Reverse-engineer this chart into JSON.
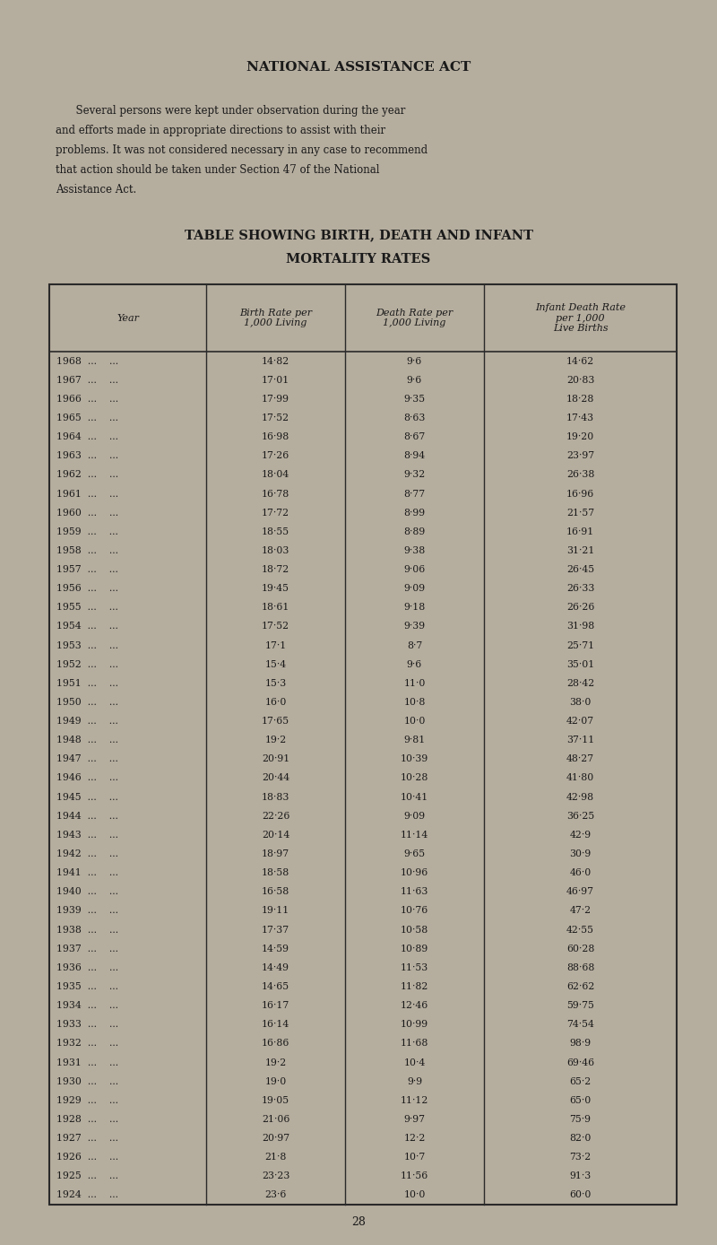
{
  "bg_color": "#b5ad9e",
  "title": "NATIONAL ASSISTANCE ACT",
  "intro_text": "Several persons were kept under observation during the year and efforts made in appropriate directions to assist with their problems. It was not considered necessary in any case to recommend that action should be taken under Section 47 of the National Assistance Act.",
  "table_title_line1": "TABLE SHOWING BIRTH, DEATH AND INFANT",
  "table_title_line2": "MORTALITY RATES",
  "col_headers": [
    "Year",
    "Birth Rate per\n1,000 Living",
    "Death Rate per\n1,000 Living",
    "Infant Death Rate\nper 1,000\nLive Births"
  ],
  "rows": [
    [
      "1968",
      "14·82",
      "9·6",
      "14·62"
    ],
    [
      "1967",
      "17·01",
      "9·6",
      "20·83"
    ],
    [
      "1966",
      "17·99",
      "9·35",
      "18·28"
    ],
    [
      "1965",
      "17·52",
      "8·63",
      "17·43"
    ],
    [
      "1964",
      "16·98",
      "8·67",
      "19·20"
    ],
    [
      "1963",
      "17·26",
      "8·94",
      "23·97"
    ],
    [
      "1962",
      "18·04",
      "9·32",
      "26·38"
    ],
    [
      "1961",
      "16·78",
      "8·77",
      "16·96"
    ],
    [
      "1960",
      "17·72",
      "8·99",
      "21·57"
    ],
    [
      "1959",
      "18·55",
      "8·89",
      "16·91"
    ],
    [
      "1958",
      "18·03",
      "9·38",
      "31·21"
    ],
    [
      "1957",
      "18·72",
      "9·06",
      "26·45"
    ],
    [
      "1956",
      "19·45",
      "9·09",
      "26·33"
    ],
    [
      "1955",
      "18·61",
      "9·18",
      "26·26"
    ],
    [
      "1954",
      "17·52",
      "9·39",
      "31·98"
    ],
    [
      "1953",
      "17·1",
      "8·7",
      "25·71"
    ],
    [
      "1952",
      "15·4",
      "9·6",
      "35·01"
    ],
    [
      "1951",
      "15·3",
      "11·0",
      "28·42"
    ],
    [
      "1950",
      "16·0",
      "10·8",
      "38·0"
    ],
    [
      "1949",
      "17·65",
      "10·0",
      "42·07"
    ],
    [
      "1948",
      "19·2",
      "9·81",
      "37·11"
    ],
    [
      "1947",
      "20·91",
      "10·39",
      "48·27"
    ],
    [
      "1946",
      "20·44",
      "10·28",
      "41·80"
    ],
    [
      "1945",
      "18·83",
      "10·41",
      "42·98"
    ],
    [
      "1944",
      "22·26",
      "9·09",
      "36·25"
    ],
    [
      "1943",
      "20·14",
      "11·14",
      "42·9"
    ],
    [
      "1942",
      "18·97",
      "9·65",
      "30·9"
    ],
    [
      "1941",
      "18·58",
      "10·96",
      "46·0"
    ],
    [
      "1940",
      "16·58",
      "11·63",
      "46·97"
    ],
    [
      "1939",
      "19·11",
      "10·76",
      "47·2"
    ],
    [
      "1938",
      "17·37",
      "10·58",
      "42·55"
    ],
    [
      "1937",
      "14·59",
      "10·89",
      "60·28"
    ],
    [
      "1936",
      "14·49",
      "11·53",
      "88·68"
    ],
    [
      "1935",
      "14·65",
      "11·82",
      "62·62"
    ],
    [
      "1934",
      "16·17",
      "12·46",
      "59·75"
    ],
    [
      "1933",
      "16·14",
      "10·99",
      "74·54"
    ],
    [
      "1932",
      "16·86",
      "11·68",
      "98·9"
    ],
    [
      "1931",
      "19·2",
      "10·4",
      "69·46"
    ],
    [
      "1930",
      "19·0",
      "9·9",
      "65·2"
    ],
    [
      "1929",
      "19·05",
      "11·12",
      "65·0"
    ],
    [
      "1928",
      "21·06",
      "9·97",
      "75·9"
    ],
    [
      "1927",
      "20·97",
      "12·2",
      "82·0"
    ],
    [
      "1926",
      "21·8",
      "10·7",
      "73·2"
    ],
    [
      "1925",
      "23·23",
      "11·56",
      "91·3"
    ],
    [
      "1924",
      "23·6",
      "10·0",
      "60·0"
    ]
  ],
  "page_number": "28",
  "text_color": "#1a1a1a",
  "table_text_color": "#1a1a1a",
  "border_color": "#2a2a2a"
}
